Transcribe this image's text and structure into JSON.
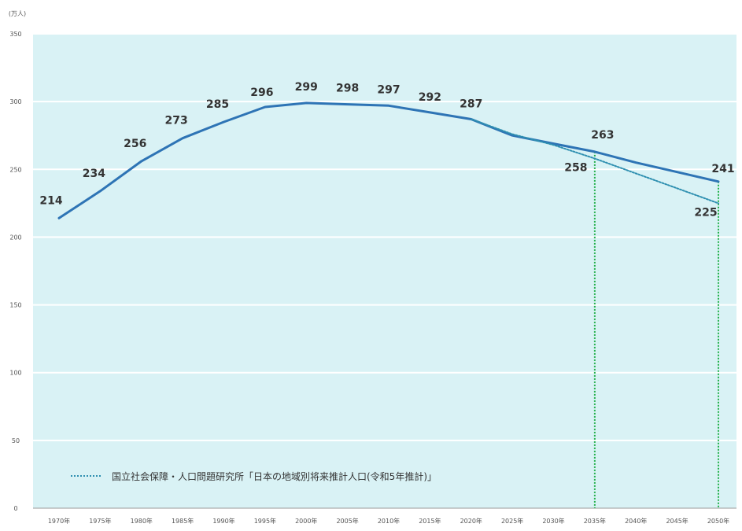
{
  "chart_data": {
    "type": "line",
    "unit_label": "(万人)",
    "categories": [
      "1970年",
      "1975年",
      "1980年",
      "1985年",
      "1990年",
      "1995年",
      "2000年",
      "2005年",
      "2010年",
      "2015年",
      "2020年",
      "2025年",
      "2030年",
      "2035年",
      "2040年",
      "2045年",
      "2050年"
    ],
    "ylim": [
      0,
      350
    ],
    "yticks": [
      0,
      50,
      100,
      150,
      200,
      250,
      300,
      350
    ],
    "grid": true,
    "series": [
      {
        "name": "",
        "style": "solid",
        "color": "#2e74b5",
        "values": [
          214,
          234,
          256,
          273,
          285,
          296,
          299,
          298,
          297,
          292,
          287,
          275,
          269,
          263,
          255,
          248,
          241
        ]
      },
      {
        "name": "国立社会保障・人口問題研究所「日本の地域別将来推計人口(令和5年推計)」",
        "style": "dotted",
        "color": "#2e8fb0",
        "values": [
          null,
          null,
          null,
          null,
          null,
          null,
          null,
          null,
          null,
          null,
          287,
          276,
          268,
          258,
          247,
          236,
          225
        ]
      }
    ],
    "data_labels": [
      {
        "text": "214",
        "x": "1970年",
        "y": 214
      },
      {
        "text": "234",
        "x": "1975年",
        "y": 234
      },
      {
        "text": "256",
        "x": "1980年",
        "y": 256
      },
      {
        "text": "273",
        "x": "1985年",
        "y": 273
      },
      {
        "text": "285",
        "x": "1990年",
        "y": 285
      },
      {
        "text": "296",
        "x": "1995年",
        "y": 296
      },
      {
        "text": "299",
        "x": "2000年",
        "y": 299
      },
      {
        "text": "298",
        "x": "2005年",
        "y": 298
      },
      {
        "text": "297",
        "x": "2010年",
        "y": 297
      },
      {
        "text": "292",
        "x": "2015年",
        "y": 292
      },
      {
        "text": "287",
        "x": "2020年",
        "y": 287
      },
      {
        "text": "263",
        "x": "2035年",
        "y": 263
      },
      {
        "text": "258",
        "x": "2035年",
        "y": 258
      },
      {
        "text": "241",
        "x": "2050年",
        "y": 241
      },
      {
        "text": "225",
        "x": "2050年",
        "y": 225
      }
    ],
    "drop_lines": [
      {
        "x": "2035年",
        "y": 263,
        "color": "#22b04a"
      },
      {
        "x": "2050年",
        "y": 241,
        "color": "#22b04a"
      }
    ],
    "legend": {
      "placement": "bottom-left",
      "text": "国立社会保障・人口問題研究所「日本の地域別将来推計人口(令和5年推計)」"
    },
    "colors": {
      "plot_background": "#d9f2f5",
      "gridline": "#ffffff",
      "axis": "#999999"
    }
  }
}
